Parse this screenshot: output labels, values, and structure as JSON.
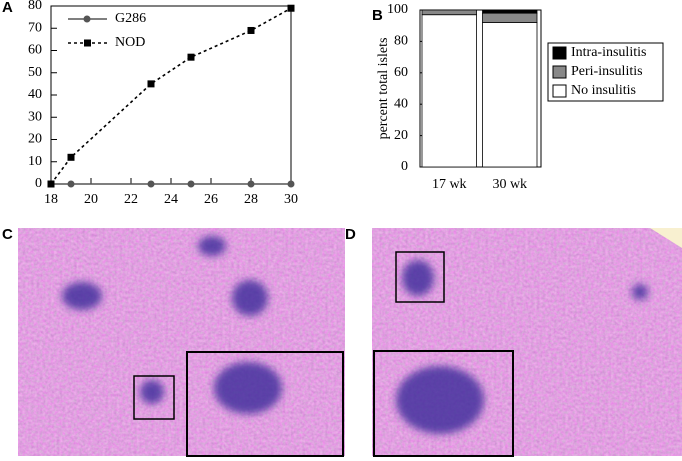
{
  "chart_data": [
    {
      "type": "line",
      "panel": "A",
      "x": [
        18,
        19,
        23,
        25,
        28,
        30
      ],
      "series": [
        {
          "name": "G286",
          "color": "#555555",
          "values": [
            0,
            0,
            0,
            0,
            0,
            0
          ]
        },
        {
          "name": "NOD",
          "color": "#000000",
          "values": [
            0,
            12,
            45,
            57,
            69,
            79
          ]
        }
      ],
      "xlim": [
        18,
        30
      ],
      "xticks": [
        18,
        20,
        22,
        24,
        26,
        28,
        30
      ],
      "ylim": [
        0,
        80
      ],
      "yticks": [
        0,
        10,
        20,
        30,
        40,
        50,
        60,
        70,
        80
      ]
    },
    {
      "type": "stacked-bar",
      "panel": "B",
      "y_label": "percent total islets",
      "categories": [
        "17 wk",
        "30 wk"
      ],
      "series": [
        {
          "name": "No insulitis",
          "color": "#ffffff",
          "values": [
            97,
            92
          ]
        },
        {
          "name": "Peri-insulitis",
          "color": "#888888",
          "values": [
            3,
            6
          ]
        },
        {
          "name": "Intra-insulitis",
          "color": "#000000",
          "values": [
            0,
            2
          ]
        }
      ],
      "ylim": [
        0,
        100
      ],
      "yticks": [
        0,
        20,
        40,
        60,
        80,
        100
      ]
    }
  ],
  "images": [
    {
      "panel": "C"
    },
    {
      "panel": "D"
    }
  ]
}
